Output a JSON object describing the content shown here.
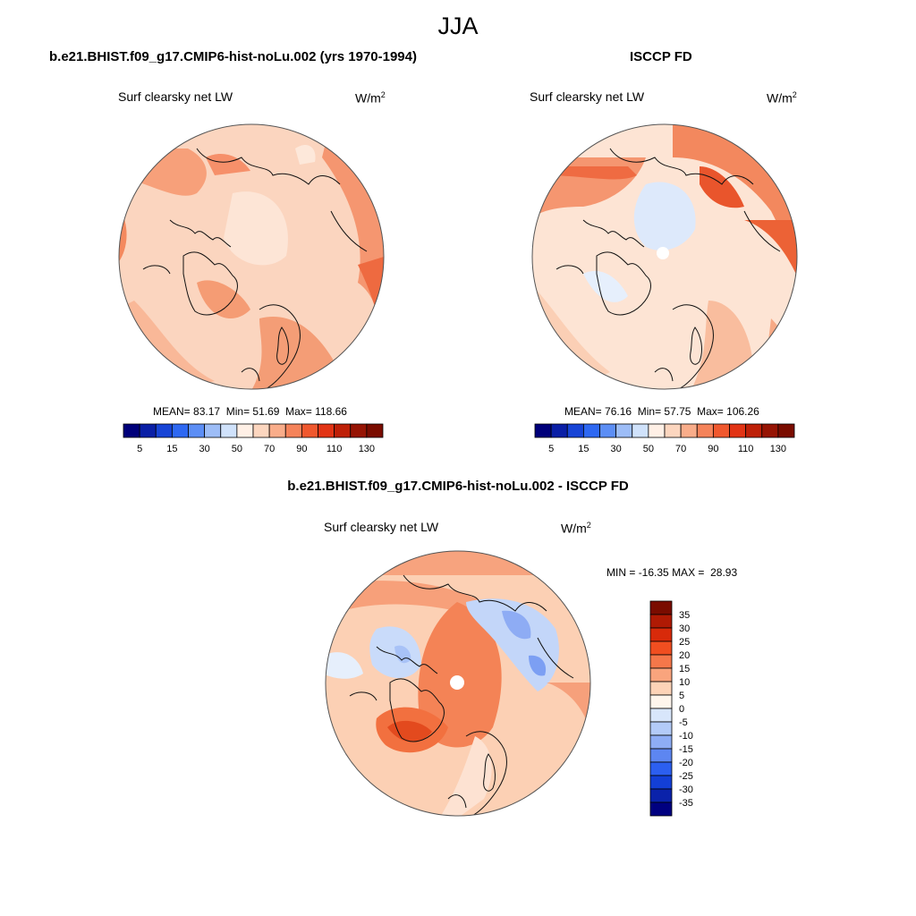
{
  "figure": {
    "title": "JJA"
  },
  "panels": [
    {
      "id": "model",
      "title": "b.e21.BHIST.f09_g17.CMIP6-hist-noLu.002 (yrs 1970-1994)",
      "variable": "Surf clearsky net LW",
      "units_base": "W/m",
      "units_exp": "2",
      "stats": {
        "mean": "83.17",
        "min": "51.69",
        "max": "118.66"
      },
      "stats_labels": {
        "mean": "MEAN=",
        "min": "Min=",
        "max": "Max="
      }
    },
    {
      "id": "obs",
      "title": "ISCCP FD",
      "variable": "Surf clearsky net LW",
      "units_base": "W/m",
      "units_exp": "2",
      "stats": {
        "mean": "76.16",
        "min": "57.75",
        "max": "106.26"
      },
      "stats_labels": {
        "mean": "MEAN=",
        "min": "Min=",
        "max": "Max="
      }
    },
    {
      "id": "diff",
      "title": "b.e21.BHIST.f09_g17.CMIP6-hist-noLu.002 - ISCCP FD",
      "variable": "Surf clearsky net LW",
      "units_base": "W/m",
      "units_exp": "2",
      "stats": {
        "min": "-16.35",
        "max": "28.93"
      },
      "stats_labels": {
        "min": "MIN =",
        "max": "MAX ="
      }
    }
  ],
  "colorbars": {
    "horizontal": {
      "colors": [
        "#00007a",
        "#0a1fa6",
        "#1744d6",
        "#2e68f2",
        "#5c8ef5",
        "#9dbdf7",
        "#d0e2fb",
        "#fff0e6",
        "#fcd6bf",
        "#f9ad8a",
        "#f5835a",
        "#f0582e",
        "#e23415",
        "#be2008",
        "#961404",
        "#7a0c00"
      ],
      "tick_labels": [
        "5",
        "15",
        "30",
        "50",
        "70",
        "90",
        "110",
        "130"
      ]
    },
    "vertical": {
      "colors": [
        "#7a0c00",
        "#b01a04",
        "#d82a0a",
        "#f04e20",
        "#f5774a",
        "#f9a47d",
        "#fdd3b7",
        "#fef5ec",
        "#d8e6fb",
        "#b3cbf8",
        "#8eadf5",
        "#5d86f1",
        "#2c5ff0",
        "#133fd7",
        "#0a22aa",
        "#000080"
      ],
      "tick_labels": [
        "35",
        "30",
        "25",
        "20",
        "15",
        "10",
        "5",
        "0",
        "-5",
        "-10",
        "-15",
        "-20",
        "-25",
        "-30",
        "-35"
      ]
    }
  },
  "map_style": {
    "abs_base_color": "#fbd5bf",
    "diff_base_color": "#fcd0b4",
    "coast_color": "#111111",
    "outline_color": "#555555"
  }
}
